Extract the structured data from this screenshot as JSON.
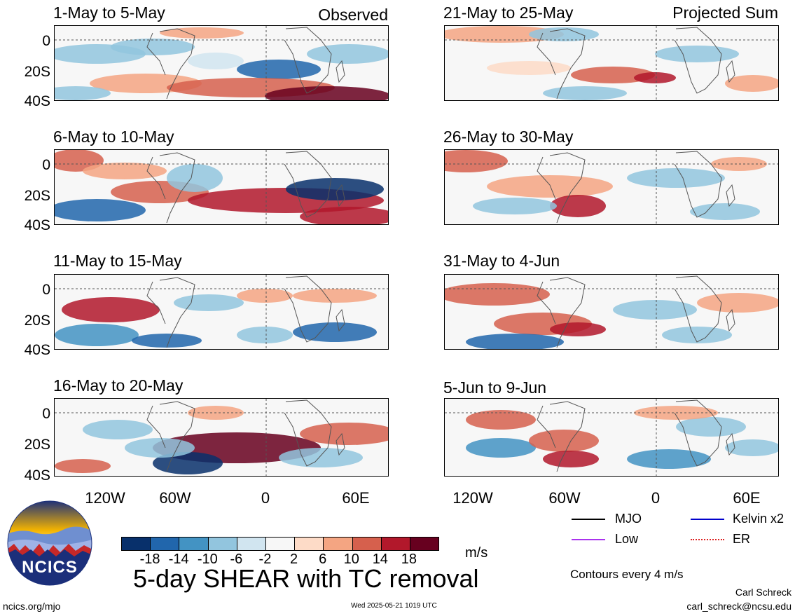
{
  "panels": [
    {
      "id": "p1",
      "title": "1-May to 5-May",
      "label": "Observed"
    },
    {
      "id": "p2",
      "title": "6-May to 10-May",
      "label": ""
    },
    {
      "id": "p3",
      "title": "11-May to 15-May",
      "label": ""
    },
    {
      "id": "p4",
      "title": "16-May to 20-May",
      "label": ""
    },
    {
      "id": "p5",
      "title": "21-May to 25-May",
      "label": "Projected Sum"
    },
    {
      "id": "p6",
      "title": "26-May to 30-May",
      "label": ""
    },
    {
      "id": "p7",
      "title": "31-May to 4-Jun",
      "label": ""
    },
    {
      "id": "p8",
      "title": "5-Jun to 9-Jun",
      "label": ""
    }
  ],
  "axes": {
    "y_ticks": [
      "0",
      "20S",
      "40S"
    ],
    "x_ticks": [
      "120W",
      "60W",
      "0",
      "60E"
    ]
  },
  "colorbar": {
    "colors": [
      "#08306b",
      "#2166ac",
      "#4393c3",
      "#92c5de",
      "#d1e5f0",
      "#f7f7f7",
      "#fddbc7",
      "#f4a582",
      "#d6604d",
      "#b2182b",
      "#67001f"
    ],
    "labels": [
      "-18",
      "-14",
      "-10",
      "-6",
      "-2",
      "2",
      "6",
      "10",
      "14",
      "18"
    ],
    "units": "m/s"
  },
  "legend": {
    "items": [
      {
        "label": "MJO",
        "color": "#000000"
      },
      {
        "label": "Kelvin x2",
        "color": "#0000cc"
      },
      {
        "label": "Low",
        "color": "#aa33ee"
      },
      {
        "label": "ER",
        "color": "#dd2222"
      }
    ],
    "note": "Contours every 4 m/s"
  },
  "logo": {
    "text": "NCICS"
  },
  "main_title": "5-day SHEAR with TC removal",
  "footer": {
    "left": "ncics.org/mjo",
    "center": "Wed 2025-05-21 1019 UTC",
    "author": "Carl Schreck",
    "email": "carl_schreck@ncsu.edu"
  }
}
